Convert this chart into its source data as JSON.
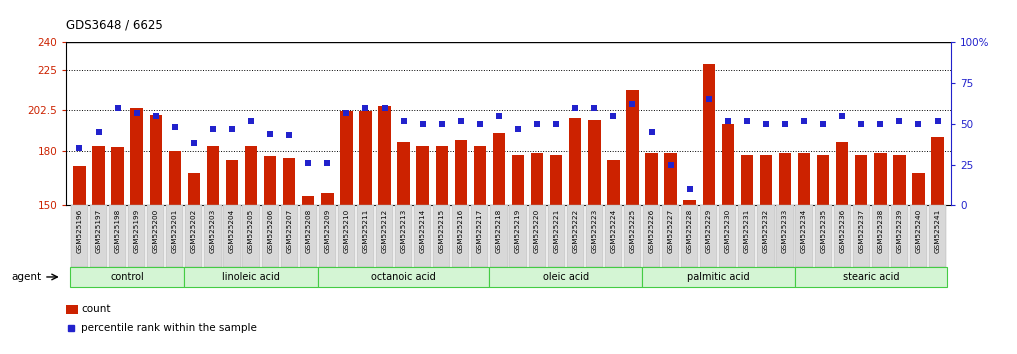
{
  "title": "GDS3648 / 6625",
  "samples": [
    "GSM525196",
    "GSM525197",
    "GSM525198",
    "GSM525199",
    "GSM525200",
    "GSM525201",
    "GSM525202",
    "GSM525203",
    "GSM525204",
    "GSM525205",
    "GSM525206",
    "GSM525207",
    "GSM525208",
    "GSM525209",
    "GSM525210",
    "GSM525211",
    "GSM525212",
    "GSM525213",
    "GSM525214",
    "GSM525215",
    "GSM525216",
    "GSM525217",
    "GSM525218",
    "GSM525219",
    "GSM525220",
    "GSM525221",
    "GSM525222",
    "GSM525223",
    "GSM525224",
    "GSM525225",
    "GSM525226",
    "GSM525227",
    "GSM525228",
    "GSM525229",
    "GSM525230",
    "GSM525231",
    "GSM525232",
    "GSM525233",
    "GSM525234",
    "GSM525235",
    "GSM525236",
    "GSM525237",
    "GSM525238",
    "GSM525239",
    "GSM525240",
    "GSM525241"
  ],
  "counts": [
    172,
    183,
    182,
    204,
    200,
    180,
    168,
    183,
    175,
    183,
    177,
    176,
    155,
    157,
    202,
    202,
    205,
    185,
    183,
    183,
    186,
    183,
    190,
    178,
    179,
    178,
    198,
    197,
    175,
    214,
    179,
    179,
    153,
    228,
    195,
    178,
    178,
    179,
    179,
    178,
    185,
    178,
    179,
    178,
    168,
    188
  ],
  "percentiles": [
    35,
    45,
    60,
    57,
    55,
    48,
    38,
    47,
    47,
    52,
    44,
    43,
    26,
    26,
    57,
    60,
    60,
    52,
    50,
    50,
    52,
    50,
    55,
    47,
    50,
    50,
    60,
    60,
    55,
    62,
    45,
    25,
    10,
    65,
    52,
    52,
    50,
    50,
    52,
    50,
    55,
    50,
    50,
    52,
    50,
    52
  ],
  "groups": [
    {
      "label": "control",
      "start": 0,
      "end": 6
    },
    {
      "label": "linoleic acid",
      "start": 6,
      "end": 13
    },
    {
      "label": "octanoic acid",
      "start": 13,
      "end": 22
    },
    {
      "label": "oleic acid",
      "start": 22,
      "end": 30
    },
    {
      "label": "palmitic acid",
      "start": 30,
      "end": 38
    },
    {
      "label": "stearic acid",
      "start": 38,
      "end": 46
    }
  ],
  "bar_color": "#cc2200",
  "dot_color": "#2222cc",
  "group_color_fill": "#d4f5d4",
  "group_color_edge": "#44cc44",
  "yticks_left": [
    150,
    180,
    202.5,
    225,
    240
  ],
  "ytick_labels_left": [
    "150",
    "180",
    "202.5",
    "225",
    "240"
  ],
  "yticks_right": [
    0,
    25,
    50,
    75,
    100
  ],
  "ytick_labels_right": [
    "0",
    "25",
    "50",
    "75",
    "100%"
  ],
  "ylim_left": [
    150,
    240
  ],
  "ylim_right": [
    0,
    100
  ],
  "hlines": [
    180,
    202.5,
    225
  ],
  "legend_count_label": "count",
  "legend_pct_label": "percentile rank within the sample",
  "agent_label": "agent"
}
